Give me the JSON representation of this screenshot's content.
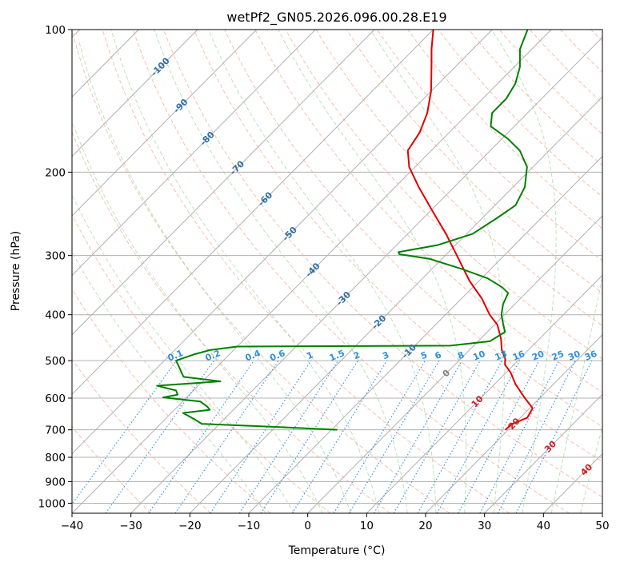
{
  "chart_data": {
    "type": "line",
    "subtype": "skew-T log-P diagram",
    "title": "wetPf2_GN05.2026.096.00.28.E19",
    "xlabel": "Temperature (°C)",
    "ylabel": "Pressure (hPa)",
    "xlim": [
      -40,
      50
    ],
    "ylim": [
      1050,
      100
    ],
    "y_scale": "log",
    "grid": true,
    "x_ticks": [
      -40,
      -30,
      -20,
      -10,
      0,
      10,
      20,
      30,
      40,
      50
    ],
    "x_tick_labels": [
      "−40",
      "−30",
      "−20",
      "−10",
      "0",
      "10",
      "20",
      "30",
      "40",
      "50"
    ],
    "y_ticks": [
      100,
      200,
      300,
      400,
      500,
      600,
      700,
      800,
      900,
      1000
    ],
    "y_tick_labels": [
      "100",
      "200",
      "300",
      "400",
      "500",
      "600",
      "700",
      "800",
      "900",
      "1000"
    ],
    "isotherm_labels": [
      {
        "t": -100,
        "text": "-100",
        "p": 120
      },
      {
        "t": -90,
        "text": "-90",
        "p": 145
      },
      {
        "t": -80,
        "text": "-80",
        "p": 170
      },
      {
        "t": -70,
        "text": "-70",
        "p": 196
      },
      {
        "t": -60,
        "text": "-60",
        "p": 228
      },
      {
        "t": -50,
        "text": "-50",
        "p": 270
      },
      {
        "t": -40,
        "text": "-40",
        "p": 322
      },
      {
        "t": -30,
        "text": "-30",
        "p": 370
      },
      {
        "t": -20,
        "text": "-20",
        "p": 415
      },
      {
        "t": -10,
        "text": "-10",
        "p": 478
      },
      {
        "t": 0,
        "text": "0",
        "p": 532
      },
      {
        "t": 10,
        "text": "10",
        "p": 610
      },
      {
        "t": 20,
        "text": "20",
        "p": 680
      },
      {
        "t": 30,
        "text": "30",
        "p": 760
      },
      {
        "t": 40,
        "text": "40",
        "p": 850
      }
    ],
    "mixing_ratio_labels": [
      "0.1",
      "0.2",
      "0.4",
      "0.6",
      "1",
      "1.5",
      "2",
      "3",
      "5",
      "6",
      "8",
      "10",
      "13",
      "16",
      "20",
      "25",
      "30",
      "36"
    ],
    "mixing_ratio_values": [
      0.1,
      0.2,
      0.4,
      0.6,
      1,
      1.5,
      2,
      3,
      5,
      6,
      8,
      10,
      13,
      16,
      20,
      25,
      30,
      36
    ],
    "mixing_ratio_label_pressure": 500,
    "series": [
      {
        "color": "#e00000",
        "points": [
          {
            "p": 700,
            "t": 19.5
          },
          {
            "p": 680,
            "t": 19.7
          },
          {
            "p": 660,
            "t": 21.2
          },
          {
            "p": 630,
            "t": 20.5
          },
          {
            "p": 600,
            "t": 17.5
          },
          {
            "p": 560,
            "t": 13.5
          },
          {
            "p": 530,
            "t": 10.8
          },
          {
            "p": 510,
            "t": 8.5
          },
          {
            "p": 495,
            "t": 7.5
          },
          {
            "p": 475,
            "t": 5.5
          },
          {
            "p": 450,
            "t": 3.5
          },
          {
            "p": 420,
            "t": 0.5
          },
          {
            "p": 400,
            "t": -2.5
          },
          {
            "p": 370,
            "t": -6.5
          },
          {
            "p": 340,
            "t": -11.5
          },
          {
            "p": 300,
            "t": -18
          },
          {
            "p": 270,
            "t": -23.5
          },
          {
            "p": 240,
            "t": -30
          },
          {
            "p": 215,
            "t": -36
          },
          {
            "p": 195,
            "t": -41
          },
          {
            "p": 180,
            "t": -44
          },
          {
            "p": 165,
            "t": -45
          },
          {
            "p": 150,
            "t": -47
          },
          {
            "p": 135,
            "t": -50
          },
          {
            "p": 120,
            "t": -54
          },
          {
            "p": 110,
            "t": -57
          },
          {
            "p": 100,
            "t": -60
          }
        ]
      },
      {
        "color": "#008000",
        "points": [
          {
            "p": 700,
            "t": -9
          },
          {
            "p": 690,
            "t": -20
          },
          {
            "p": 680,
            "t": -33
          },
          {
            "p": 665,
            "t": -35
          },
          {
            "p": 645,
            "t": -38
          },
          {
            "p": 635,
            "t": -34
          },
          {
            "p": 625,
            "t": -35
          },
          {
            "p": 610,
            "t": -37
          },
          {
            "p": 598,
            "t": -44
          },
          {
            "p": 590,
            "t": -42
          },
          {
            "p": 578,
            "t": -43
          },
          {
            "p": 565,
            "t": -47
          },
          {
            "p": 553,
            "t": -37
          },
          {
            "p": 541,
            "t": -44
          },
          {
            "p": 520,
            "t": -46
          },
          {
            "p": 500,
            "t": -48
          },
          {
            "p": 485,
            "t": -46
          },
          {
            "p": 475,
            "t": -44
          },
          {
            "p": 467,
            "t": -40
          },
          {
            "p": 465,
            "t": -4
          },
          {
            "p": 455,
            "t": 2
          },
          {
            "p": 435,
            "t": 3
          },
          {
            "p": 420,
            "t": 1.5
          },
          {
            "p": 400,
            "t": -0.5
          },
          {
            "p": 380,
            "t": -2
          },
          {
            "p": 360,
            "t": -3
          },
          {
            "p": 350,
            "t": -5
          },
          {
            "p": 335,
            "t": -9
          },
          {
            "p": 320,
            "t": -15
          },
          {
            "p": 305,
            "t": -22
          },
          {
            "p": 298,
            "t": -28
          },
          {
            "p": 295,
            "t": -28.5
          },
          {
            "p": 285,
            "t": -23
          },
          {
            "p": 270,
            "t": -19
          },
          {
            "p": 250,
            "t": -17.5
          },
          {
            "p": 235,
            "t": -16.5
          },
          {
            "p": 215,
            "t": -18
          },
          {
            "p": 195,
            "t": -21
          },
          {
            "p": 180,
            "t": -25
          },
          {
            "p": 170,
            "t": -29
          },
          {
            "p": 160,
            "t": -34
          },
          {
            "p": 150,
            "t": -36
          },
          {
            "p": 140,
            "t": -36
          },
          {
            "p": 130,
            "t": -37
          },
          {
            "p": 120,
            "t": -39
          },
          {
            "p": 110,
            "t": -42
          },
          {
            "p": 100,
            "t": -44
          }
        ]
      }
    ]
  }
}
